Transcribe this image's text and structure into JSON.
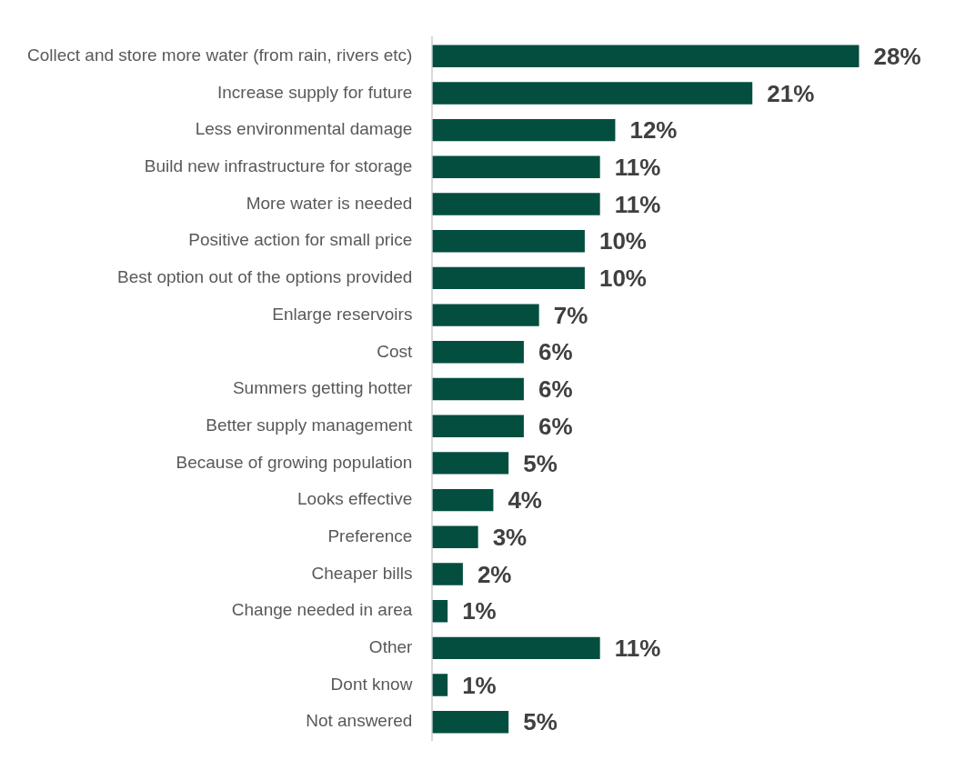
{
  "chart_data": {
    "type": "bar",
    "orientation": "horizontal",
    "categories": [
      "Collect and store more water (from rain, rivers etc)",
      "Increase supply for future",
      "Less environmental damage",
      "Build new infrastructure for storage",
      "More water is needed",
      "Positive action for small price",
      "Best option out of the options provided",
      "Enlarge reservoirs",
      "Cost",
      "Summers getting hotter",
      "Better supply management",
      "Because of growing population",
      "Looks effective",
      "Preference",
      "Cheaper bills",
      "Change needed in area",
      "Other",
      "Dont know",
      "Not answered"
    ],
    "values": [
      28,
      21,
      12,
      11,
      11,
      10,
      10,
      7,
      6,
      6,
      6,
      5,
      4,
      3,
      2,
      1,
      11,
      1,
      5
    ],
    "value_labels": [
      "28%",
      "21%",
      "12%",
      "11%",
      "11%",
      "10%",
      "10%",
      "7%",
      "6%",
      "6%",
      "6%",
      "5%",
      "4%",
      "3%",
      "2%",
      "1%",
      "11%",
      "1%",
      "5%"
    ],
    "color": "#034e3f"
  }
}
